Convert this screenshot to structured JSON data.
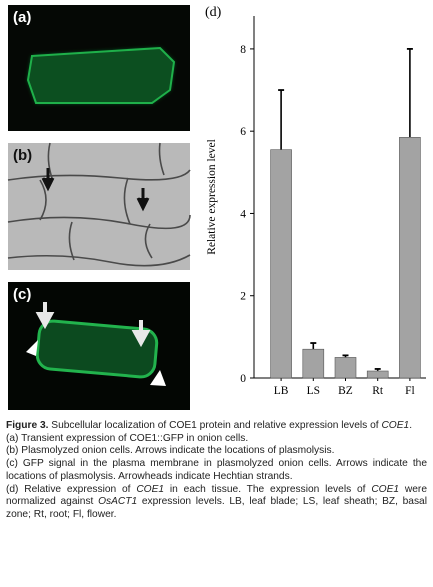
{
  "panels": {
    "a": "(a)",
    "b": "(b)",
    "c": "(c)"
  },
  "chart_data": {
    "type": "bar",
    "panel_label": "(d)",
    "y_label": "Relative expression level",
    "categories": [
      "LB",
      "LS",
      "BZ",
      "Rt",
      "Fl"
    ],
    "values": [
      5.55,
      0.7,
      0.5,
      0.17,
      5.85
    ],
    "errors": [
      1.45,
      0.15,
      0.05,
      0.05,
      2.15
    ],
    "color": "#a3a3a3",
    "ylim": [
      0,
      8.8
    ],
    "yticks": [
      0,
      2,
      4,
      6,
      8
    ],
    "grid": false
  },
  "caption": {
    "p0": [
      "Figure 3.",
      " Subcellular localization of COE1 protein and relative expression levels of ",
      "COE1",
      "."
    ],
    "p1": [
      "(a) Transient expression of COE1::GFP in onion cells."
    ],
    "p2": [
      "(b) Plasmolyzed onion cells. Arrows indicate the locations of plasmolysis."
    ],
    "p3": [
      "(c) GFP signal in the plasma membrane in plasmolyzed onion cells. Arrows indicate the locations of plasmolysis. Arrowheads indicate Hechtian strands."
    ],
    "p4": [
      "(d) Relative expression of ",
      "COE1",
      " in each tissue. The expression levels of ",
      "COE1",
      " were normalized against ",
      "OsACT1",
      " expression levels. LB, leaf blade; LS, leaf sheath; BZ, basal zone; Rt, root; Fl, flower."
    ]
  }
}
